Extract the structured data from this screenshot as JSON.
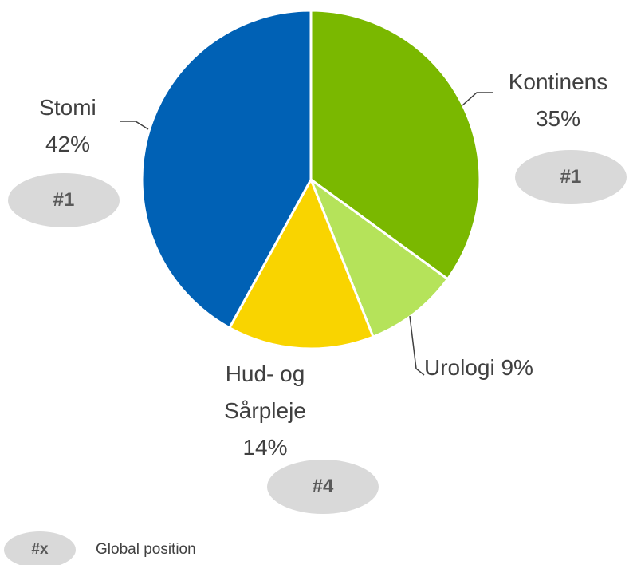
{
  "chart_data": {
    "type": "pie",
    "categories": [
      "Kontinens",
      "Urologi",
      "Hud- og Sårpleje",
      "Stomi"
    ],
    "values": [
      35,
      9,
      14,
      42
    ],
    "value_labels": [
      "35%",
      "9%",
      "14%",
      "42%"
    ],
    "colors": [
      "#7ab800",
      "#b5e35a",
      "#f9d400",
      "#0061b5"
    ],
    "badges": [
      {
        "category": "Kontinens",
        "label": "#1"
      },
      {
        "category": "Hud- og Sårpleje",
        "label": "#4"
      },
      {
        "category": "Stomi",
        "label": "#1"
      }
    ],
    "legend": {
      "badge": "#x",
      "text": "Global position"
    }
  }
}
